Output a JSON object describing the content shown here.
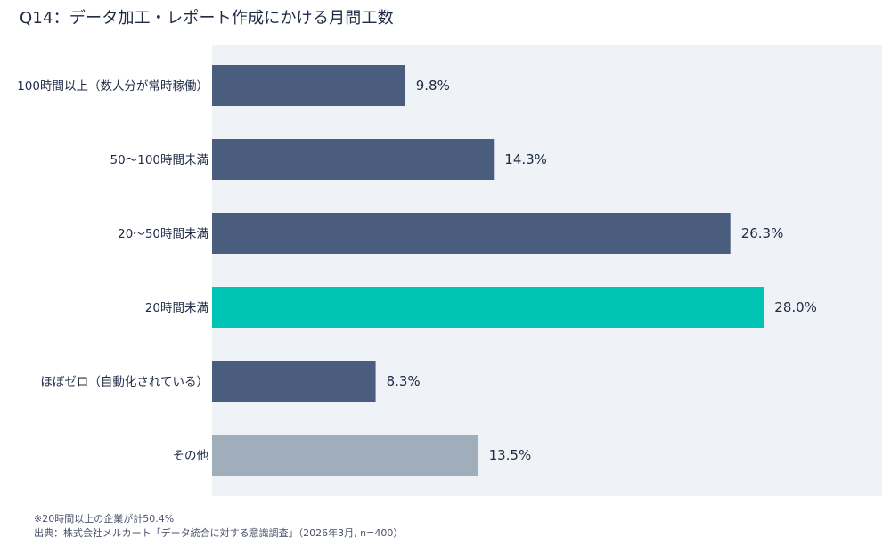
{
  "chart_data": {
    "type": "bar",
    "orientation": "horizontal",
    "title": "Q14：データ加工・レポート作成にかける月間工数",
    "categories": [
      "100時間以上（数人分が常時稼働）",
      "50〜100時間未満",
      "20〜50時間未満",
      "20時間未満",
      "ほぼゼロ（自動化されている）",
      "その他"
    ],
    "values": [
      9.8,
      14.3,
      26.3,
      28.0,
      8.3,
      13.5
    ],
    "value_labels": [
      "9.8%",
      "14.3%",
      "26.3%",
      "28.0%",
      "8.3%",
      "13.5%"
    ],
    "unit": "%",
    "xlim": [
      0,
      34
    ],
    "grid": false,
    "colors": [
      "#4a5d7e",
      "#4a5d7e",
      "#4a5d7e",
      "#00c4b3",
      "#4a5d7e",
      "#a0adbb"
    ],
    "plot_background": "#eff2f7"
  },
  "footnotes": {
    "note": "※20時間以上の企業が計50.4%",
    "source": "出典：株式会社メルカート「データ統合に対する意識調査」（2026年3月, n=400）"
  }
}
